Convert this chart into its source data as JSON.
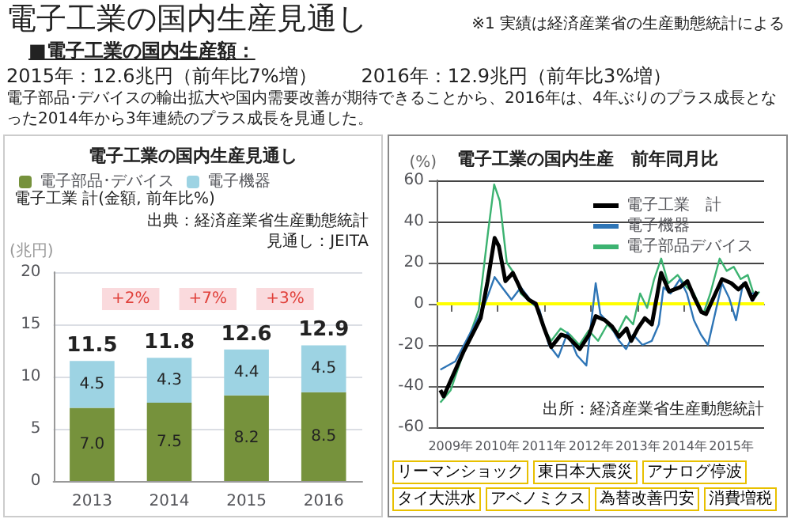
{
  "chart_data": [
    {
      "type": "other",
      "title": "電子工業の国内生産見通し",
      "subtitle": "■電子工業の国内生産額：",
      "annotations": [
        "※1 実績は経済産業省の生産動態統計による",
        "2015年：12.6兆円（前年比7%増）",
        "2016年：12.9兆円（前年比3%増）",
        "電子部品･デバイスの輸出拡大や国内需要改善が期待できることから、2016年は、4年ぶりのプラス成長となった2014年から3年連続のプラス成長を見通した。"
      ]
    },
    {
      "type": "bar",
      "title": "電子工業の国内生産見通し",
      "ylabel": "(兆円)",
      "categories": [
        "2013",
        "2014",
        "2015",
        "2016"
      ],
      "stacked": true,
      "ylim": [
        0,
        20
      ],
      "yticks": [
        0,
        5,
        10,
        15,
        20
      ],
      "grid": "y",
      "legend": "top left",
      "series": [
        {
          "name": "電子部品･デバイス",
          "color": "#76923c",
          "values": [
            7.0,
            7.5,
            8.2,
            8.5
          ],
          "value_labels": [
            "7.0",
            "7.5",
            "8.2",
            "8.5"
          ]
        },
        {
          "name": "電子機器",
          "color": "#9dd3e3",
          "values": [
            4.5,
            4.3,
            4.4,
            4.5
          ],
          "value_labels": [
            "4.5",
            "4.3",
            "4.4",
            "4.5"
          ]
        }
      ],
      "totals": [
        "11.5",
        "11.8",
        "12.6",
        "12.9"
      ],
      "annotations": [
        "電子工業 計(金額, 前年比%)",
        "出典：経済産業省生産動態統計",
        "見通し：JEITA",
        "+2%",
        "+7%",
        "+3%"
      ]
    },
    {
      "type": "line",
      "title": "電子工業の国内生産　前年同月比",
      "ylabel": "(%)",
      "xlim": [
        2008.7,
        2015.7
      ],
      "xticks": [
        {
          "value": 2009,
          "label": "2009年"
        },
        {
          "value": 2010,
          "label": "2010年"
        },
        {
          "value": 2011,
          "label": "2011年"
        },
        {
          "value": 2012,
          "label": "2012年"
        },
        {
          "value": 2013,
          "label": "2013年"
        },
        {
          "value": 2014,
          "label": "2014年"
        },
        {
          "value": 2015,
          "label": "2015年"
        }
      ],
      "ylim": [
        -60,
        60
      ],
      "yticks": [
        -60,
        -40,
        -20,
        0,
        20,
        40,
        60
      ],
      "grid": "y",
      "legend": "top right",
      "ref_lines": [
        {
          "axis": "y",
          "value": 0,
          "color": "#ffff00"
        }
      ],
      "series": [
        {
          "name": "電子工業　計",
          "color": "#000000",
          "x": [
            2008.78,
            2008.85,
            2009.28,
            2009.64,
            2009.79,
            2009.94,
            2010.03,
            2010.17,
            2010.33,
            2010.52,
            2010.67,
            2010.82,
            2011.0,
            2011.15,
            2011.36,
            2011.5,
            2011.76,
            2011.96,
            2012.1,
            2012.3,
            2012.45,
            2012.6,
            2012.76,
            2012.86,
            2013.0,
            2013.15,
            2013.3,
            2013.5,
            2013.67,
            2013.9,
            2014.06,
            2014.21,
            2014.36,
            2014.46,
            2014.6,
            2014.8,
            2015.0,
            2015.15,
            2015.3,
            2015.45,
            2015.55
          ],
          "values": [
            -42,
            -45,
            -23,
            -7,
            11,
            32,
            28,
            11,
            15,
            6,
            2,
            0,
            -12,
            -21,
            -15,
            -16,
            -22,
            -15,
            -6,
            -8,
            -11,
            -16,
            -12,
            -18,
            -12,
            -7,
            -10,
            15,
            6,
            8,
            11,
            3,
            -4,
            -5,
            2,
            12,
            10,
            7,
            10,
            2,
            6
          ]
        },
        {
          "name": "電子機器",
          "color": "#2e75b6",
          "x": [
            2008.78,
            2009.1,
            2009.4,
            2009.7,
            2009.94,
            2010.1,
            2010.3,
            2010.5,
            2010.7,
            2010.9,
            2011.1,
            2011.3,
            2011.5,
            2011.7,
            2011.9,
            2012.1,
            2012.2,
            2012.4,
            2012.6,
            2012.75,
            2012.9,
            2013.1,
            2013.3,
            2013.45,
            2013.55,
            2013.7,
            2013.9,
            2014.05,
            2014.2,
            2014.35,
            2014.5,
            2014.65,
            2014.8,
            2014.95,
            2015.1,
            2015.25,
            2015.4,
            2015.55
          ],
          "values": [
            -32,
            -28,
            -15,
            -2,
            13,
            8,
            2,
            8,
            2,
            -3,
            -20,
            -26,
            -14,
            -25,
            -30,
            10,
            -5,
            -10,
            -18,
            -22,
            -15,
            -20,
            -18,
            -10,
            8,
            5,
            12,
            5,
            -8,
            -15,
            -20,
            -5,
            10,
            3,
            -8,
            10,
            5,
            5
          ]
        },
        {
          "name": "電子部品デバイス",
          "color": "#3cb371",
          "x": [
            2008.78,
            2009.0,
            2009.3,
            2009.6,
            2009.8,
            2009.93,
            2010.05,
            2010.2,
            2010.35,
            2010.5,
            2010.7,
            2010.85,
            2011.0,
            2011.15,
            2011.35,
            2011.55,
            2011.75,
            2011.95,
            2012.15,
            2012.35,
            2012.55,
            2012.75,
            2012.9,
            2013.05,
            2013.2,
            2013.35,
            2013.5,
            2013.65,
            2013.85,
            2014.05,
            2014.2,
            2014.4,
            2014.55,
            2014.75,
            2014.9,
            2015.05,
            2015.2,
            2015.35,
            2015.5,
            2015.6
          ],
          "values": [
            -48,
            -42,
            -22,
            -3,
            35,
            58,
            50,
            20,
            15,
            5,
            1,
            -2,
            -12,
            -18,
            -12,
            -15,
            -20,
            -13,
            -18,
            -10,
            -15,
            -6,
            -10,
            5,
            -2,
            12,
            22,
            10,
            14,
            8,
            5,
            -5,
            5,
            22,
            16,
            18,
            12,
            14,
            3,
            6
          ]
        }
      ],
      "annotations": [
        "出所：経済産業省生産動態統計",
        "リーマンショック",
        "東日本大震災",
        "アナログ停波",
        "タイ大洪水",
        "アベノミクス",
        "為替改善円安",
        "消費増税"
      ]
    }
  ]
}
